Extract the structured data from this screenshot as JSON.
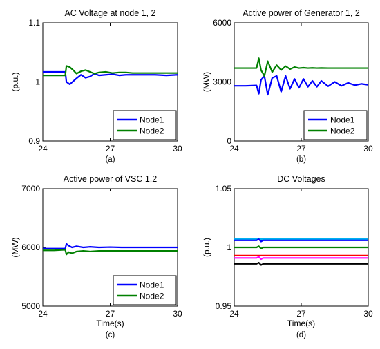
{
  "chart_data": [
    {
      "type": "line",
      "title": "AC Voltage at node 1, 2",
      "xlabel": "",
      "ylabel": "(p.u.)",
      "caption": "(a)",
      "xlim": [
        24,
        30
      ],
      "ylim": [
        0.9,
        1.1
      ],
      "xticks": [
        "24",
        "27",
        "30"
      ],
      "yticks": [
        "0.9",
        "1",
        "1.1"
      ],
      "legend": "bottom-right",
      "x": [
        24,
        24.5,
        25,
        25.05,
        25.2,
        25.35,
        25.5,
        25.7,
        25.9,
        26.1,
        26.3,
        26.5,
        26.8,
        27.1,
        27.4,
        27.7,
        28,
        28.5,
        29,
        29.5,
        30
      ],
      "series": [
        {
          "name": "Node1",
          "color": "#0000ff",
          "values": [
            1.017,
            1.017,
            1.017,
            1.0,
            0.996,
            1.001,
            1.006,
            1.012,
            1.007,
            1.009,
            1.014,
            1.011,
            1.012,
            1.013,
            1.011,
            1.012,
            1.012,
            1.012,
            1.012,
            1.011,
            1.012
          ]
        },
        {
          "name": "Node2",
          "color": "#008000",
          "values": [
            1.011,
            1.011,
            1.011,
            1.027,
            1.025,
            1.02,
            1.014,
            1.018,
            1.02,
            1.017,
            1.014,
            1.016,
            1.017,
            1.015,
            1.016,
            1.016,
            1.015,
            1.015,
            1.015,
            1.015,
            1.015
          ]
        }
      ]
    },
    {
      "type": "line",
      "title": "Active power of Generator 1, 2",
      "xlabel": "",
      "ylabel": "(MW)",
      "caption": "(b)",
      "xlim": [
        24,
        30
      ],
      "ylim": [
        0,
        6000
      ],
      "xticks": [
        "24",
        "27",
        "30"
      ],
      "yticks": [
        "0",
        "3000",
        "6000"
      ],
      "legend": "bottom-right",
      "x": [
        24,
        24.5,
        25,
        25.1,
        25.2,
        25.35,
        25.5,
        25.7,
        25.9,
        26.1,
        26.3,
        26.5,
        26.7,
        26.9,
        27.1,
        27.3,
        27.5,
        27.7,
        27.9,
        28.2,
        28.5,
        28.8,
        29.1,
        29.4,
        29.7,
        30
      ],
      "series": [
        {
          "name": "Node1",
          "color": "#0000ff",
          "values": [
            2800,
            2800,
            2820,
            2400,
            3100,
            3300,
            2350,
            3200,
            3300,
            2500,
            3300,
            2650,
            3150,
            2700,
            3150,
            2750,
            3050,
            2750,
            3050,
            2780,
            3000,
            2800,
            2950,
            2830,
            2900,
            2850
          ]
        },
        {
          "name": "Node2",
          "color": "#008000",
          "values": [
            3700,
            3700,
            3700,
            4200,
            3600,
            3300,
            4050,
            3500,
            3850,
            3600,
            3800,
            3650,
            3750,
            3700,
            3720,
            3700,
            3710,
            3700,
            3705,
            3700,
            3700,
            3700,
            3700,
            3700,
            3700,
            3700
          ]
        }
      ]
    },
    {
      "type": "line",
      "title": "Active power of VSC 1,2",
      "xlabel": "Time(s)",
      "ylabel": "(MW)",
      "caption": "(c)",
      "xlim": [
        24,
        30
      ],
      "ylim": [
        5000,
        7000
      ],
      "xticks": [
        "24",
        "27",
        "30"
      ],
      "yticks": [
        "5000",
        "6000",
        "7000"
      ],
      "legend": "bottom-right",
      "x": [
        24,
        24.5,
        25,
        25.05,
        25.15,
        25.3,
        25.5,
        25.8,
        26.1,
        26.5,
        27,
        27.5,
        28,
        29,
        30
      ],
      "series": [
        {
          "name": "Node1",
          "color": "#0000ff",
          "values": [
            5980,
            5980,
            5980,
            6060,
            6030,
            6000,
            6020,
            6000,
            6010,
            6000,
            6005,
            6000,
            6000,
            6000,
            6000
          ]
        },
        {
          "name": "Node2",
          "color": "#008000",
          "values": [
            5950,
            5950,
            5960,
            5880,
            5920,
            5900,
            5930,
            5940,
            5930,
            5940,
            5940,
            5940,
            5940,
            5940,
            5940
          ]
        }
      ]
    },
    {
      "type": "line",
      "title": "DC Voltages",
      "xlabel": "Time(s)",
      "ylabel": "(p.u.)",
      "caption": "(d)",
      "xlim": [
        24,
        30
      ],
      "ylim": [
        0.95,
        1.05
      ],
      "xticks": [
        "24",
        "27",
        "30"
      ],
      "yticks": [
        "0.95",
        "1",
        "1.05"
      ],
      "x": [
        24,
        25,
        25.1,
        25.2,
        25.3,
        26,
        27,
        28,
        29,
        30
      ],
      "series": [
        {
          "color": "#00b0f0",
          "values": [
            1.007,
            1.007,
            1.007,
            1.007,
            1.007,
            1.007,
            1.007,
            1.007,
            1.007,
            1.007
          ]
        },
        {
          "color": "#0000ff",
          "values": [
            1.006,
            1.006,
            1.007,
            1.005,
            1.006,
            1.006,
            1.006,
            1.006,
            1.006,
            1.006
          ]
        },
        {
          "color": "#008000",
          "values": [
            1.0,
            1.0,
            1.001,
            0.999,
            1.0,
            1.0,
            1.0,
            1.0,
            1.0,
            1.0
          ]
        },
        {
          "color": "#ff0000",
          "values": [
            0.993,
            0.993,
            0.993,
            0.993,
            0.993,
            0.993,
            0.993,
            0.993,
            0.993,
            0.993
          ]
        },
        {
          "color": "#ff00ff",
          "values": [
            0.991,
            0.991,
            0.992,
            0.99,
            0.991,
            0.991,
            0.991,
            0.991,
            0.991,
            0.991
          ]
        },
        {
          "color": "#000000",
          "values": [
            0.986,
            0.986,
            0.987,
            0.985,
            0.986,
            0.986,
            0.986,
            0.986,
            0.986,
            0.986
          ]
        }
      ]
    }
  ]
}
